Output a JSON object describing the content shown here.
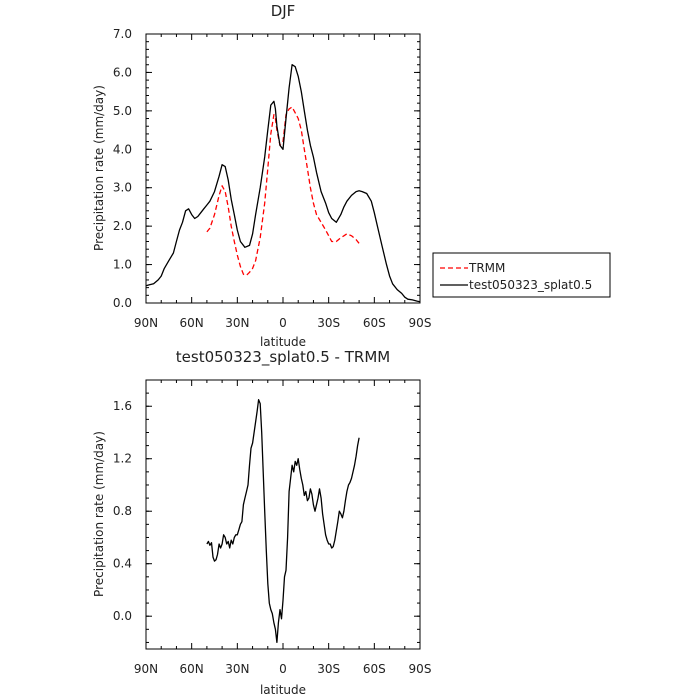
{
  "chart_data": [
    {
      "type": "line",
      "title": "DJF",
      "xlabel": "latitude",
      "ylabel": "Precipitation rate (mm/day)",
      "x_ticks": [
        "90N",
        "60N",
        "30N",
        "0",
        "30S",
        "60S",
        "90S"
      ],
      "x_tick_values": [
        -90,
        -60,
        -30,
        0,
        30,
        60,
        90
      ],
      "y_ticks": [
        "0.0",
        "1.0",
        "2.0",
        "3.0",
        "4.0",
        "5.0",
        "6.0",
        "7.0"
      ],
      "xlim": [
        -90,
        90
      ],
      "ylim": [
        0,
        7
      ],
      "grid": false,
      "legend_position": "right, outside plot",
      "series": [
        {
          "name": "TRMM",
          "color": "#ff0000",
          "style": "dashed",
          "x": [
            -50,
            -48,
            -45,
            -42,
            -40,
            -38,
            -36,
            -34,
            -32,
            -30,
            -28,
            -26,
            -24,
            -22,
            -20,
            -18,
            -15,
            -12,
            -10,
            -8,
            -6,
            -5,
            -4,
            -2,
            0,
            2,
            4,
            6,
            8,
            10,
            12,
            14,
            16,
            18,
            20,
            22,
            25,
            28,
            30,
            32,
            35,
            38,
            40,
            42,
            45,
            48,
            50
          ],
          "y": [
            1.85,
            1.95,
            2.3,
            2.8,
            3.05,
            2.9,
            2.5,
            2.0,
            1.6,
            1.25,
            0.95,
            0.75,
            0.72,
            0.8,
            0.9,
            1.1,
            1.7,
            2.6,
            3.5,
            4.4,
            4.9,
            4.8,
            4.5,
            4.1,
            4.2,
            4.9,
            5.05,
            5.1,
            4.95,
            4.8,
            4.5,
            4.0,
            3.5,
            3.0,
            2.6,
            2.3,
            2.1,
            1.9,
            1.75,
            1.6,
            1.6,
            1.7,
            1.75,
            1.8,
            1.75,
            1.65,
            1.55
          ]
        },
        {
          "name": "test050323_splat0.5",
          "color": "#000000",
          "style": "solid",
          "x": [
            -90,
            -88,
            -85,
            -82,
            -80,
            -78,
            -75,
            -72,
            -70,
            -68,
            -66,
            -64,
            -62,
            -60,
            -58,
            -56,
            -54,
            -52,
            -50,
            -48,
            -45,
            -42,
            -40,
            -38,
            -36,
            -34,
            -32,
            -30,
            -28,
            -25,
            -22,
            -20,
            -18,
            -15,
            -12,
            -10,
            -8,
            -6,
            -5,
            -4,
            -2,
            0,
            2,
            4,
            6,
            8,
            10,
            12,
            14,
            16,
            18,
            20,
            22,
            25,
            28,
            30,
            32,
            35,
            38,
            40,
            42,
            45,
            48,
            50,
            52,
            55,
            58,
            60,
            62,
            65,
            68,
            70,
            72,
            75,
            78,
            80,
            82,
            85,
            88,
            90
          ],
          "y": [
            0.45,
            0.47,
            0.5,
            0.6,
            0.7,
            0.9,
            1.1,
            1.3,
            1.6,
            1.9,
            2.1,
            2.4,
            2.45,
            2.3,
            2.2,
            2.25,
            2.35,
            2.45,
            2.55,
            2.65,
            2.9,
            3.3,
            3.6,
            3.55,
            3.2,
            2.7,
            2.3,
            1.9,
            1.6,
            1.45,
            1.5,
            1.8,
            2.3,
            3.0,
            3.8,
            4.5,
            5.15,
            5.25,
            5.05,
            4.6,
            4.1,
            4.0,
            4.8,
            5.6,
            6.2,
            6.15,
            5.9,
            5.5,
            5.0,
            4.5,
            4.1,
            3.8,
            3.4,
            2.9,
            2.6,
            2.35,
            2.2,
            2.1,
            2.3,
            2.5,
            2.65,
            2.8,
            2.9,
            2.92,
            2.9,
            2.85,
            2.65,
            2.35,
            2.0,
            1.5,
            1.0,
            0.7,
            0.5,
            0.35,
            0.25,
            0.15,
            0.1,
            0.08,
            0.05,
            0.03
          ]
        }
      ]
    },
    {
      "type": "line",
      "title": "test050323_splat0.5 - TRMM",
      "xlabel": "latitude",
      "ylabel": "Precipitation rate (mm/day)",
      "x_ticks": [
        "90N",
        "60N",
        "30N",
        "0",
        "30S",
        "60S",
        "90S"
      ],
      "x_tick_values": [
        -90,
        -60,
        -30,
        0,
        30,
        60,
        90
      ],
      "y_ticks": [
        "0.0",
        "0.4",
        "0.8",
        "1.2",
        "1.6"
      ],
      "y_tick_values": [
        0,
        0.4,
        0.8,
        1.2,
        1.6
      ],
      "xlim": [
        -90,
        90
      ],
      "ylim": [
        -0.25,
        1.8
      ],
      "grid": false,
      "series": [
        {
          "name": "",
          "color": "#000000",
          "style": "solid",
          "x": [
            -50,
            -49,
            -48,
            -47,
            -46,
            -45,
            -44,
            -43,
            -42,
            -41,
            -40,
            -39,
            -38,
            -37,
            -36,
            -35,
            -34,
            -33,
            -32,
            -31,
            -30,
            -29,
            -28,
            -27,
            -26,
            -25,
            -24,
            -23,
            -22,
            -21,
            -20,
            -19,
            -18,
            -17,
            -16,
            -15,
            -14,
            -13,
            -12,
            -11,
            -10,
            -9,
            -8,
            -7,
            -6,
            -5,
            -4,
            -3,
            -2,
            -1,
            0,
            1,
            2,
            3,
            4,
            5,
            6,
            7,
            8,
            9,
            10,
            11,
            12,
            13,
            14,
            15,
            16,
            17,
            18,
            19,
            20,
            21,
            22,
            23,
            24,
            25,
            26,
            27,
            28,
            29,
            30,
            31,
            32,
            33,
            34,
            35,
            36,
            37,
            38,
            39,
            40,
            41,
            42,
            43,
            44,
            45,
            46,
            47,
            48,
            49,
            50
          ],
          "y": [
            0.55,
            0.57,
            0.54,
            0.56,
            0.45,
            0.42,
            0.43,
            0.47,
            0.55,
            0.52,
            0.55,
            0.62,
            0.6,
            0.55,
            0.57,
            0.52,
            0.58,
            0.55,
            0.6,
            0.62,
            0.62,
            0.66,
            0.7,
            0.72,
            0.85,
            0.9,
            0.95,
            1.0,
            1.15,
            1.28,
            1.32,
            1.4,
            1.48,
            1.56,
            1.65,
            1.62,
            1.4,
            1.1,
            0.8,
            0.5,
            0.25,
            0.1,
            0.05,
            0.02,
            -0.05,
            -0.1,
            -0.2,
            -0.05,
            0.05,
            -0.02,
            0.12,
            0.3,
            0.35,
            0.6,
            0.95,
            1.05,
            1.15,
            1.1,
            1.18,
            1.15,
            1.2,
            1.12,
            1.05,
            1.0,
            0.92,
            0.95,
            0.88,
            0.9,
            0.97,
            0.93,
            0.85,
            0.8,
            0.85,
            0.9,
            0.97,
            0.9,
            0.78,
            0.7,
            0.62,
            0.58,
            0.55,
            0.55,
            0.52,
            0.53,
            0.58,
            0.65,
            0.72,
            0.8,
            0.78,
            0.75,
            0.8,
            0.88,
            0.95,
            1.0,
            1.02,
            1.05,
            1.1,
            1.15,
            1.22,
            1.3,
            1.36
          ]
        }
      ]
    }
  ]
}
